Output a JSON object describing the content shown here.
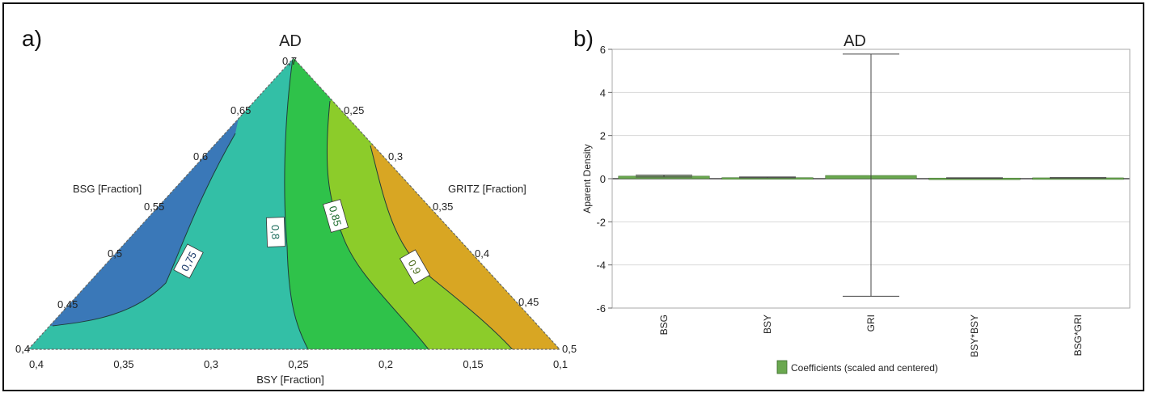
{
  "panels": {
    "left_label": "a)",
    "right_label": "b)"
  },
  "chart_data": [
    {
      "type": "ternary-contour",
      "title": "AD",
      "axis_labels": {
        "left": "BSG [Fraction]",
        "right": "GRITZ [Fraction]",
        "bottom": "BSY [Fraction]"
      },
      "left_ticks": [
        "0,4",
        "0,45",
        "0,5",
        "0,55",
        "0,6",
        "0,65",
        "0,7"
      ],
      "right_ticks": [
        "0,25",
        "0,3",
        "0,35",
        "0,4",
        "0,45",
        "0,5"
      ],
      "bottom_ticks": [
        "0,4",
        "0,35",
        "0,3",
        "0,25",
        "0,2",
        "0,15",
        "0,1"
      ],
      "contour_levels": [
        "0,75",
        "0,8",
        "0,85",
        "0,9"
      ],
      "region_colors": [
        "#3a78b8",
        "#33bfa6",
        "#2fc24a",
        "#8ccc2a",
        "#d8a623",
        "#d8251e"
      ]
    },
    {
      "type": "bar",
      "title": "AD",
      "ylabel": "Aparent Density",
      "ylim": [
        -6,
        6
      ],
      "y_ticks": [
        "6",
        "4",
        "2",
        "0",
        "-2",
        "-4",
        "-6"
      ],
      "categories": [
        "BSG",
        "BSY",
        "GRI",
        "BSY*BSY",
        "BSG*GRI"
      ],
      "values": [
        0.12,
        0.05,
        0.15,
        0.03,
        0.04
      ],
      "error_low": [
        0.08,
        0.04,
        -5.45,
        0.02,
        0.03
      ],
      "error_high": [
        0.17,
        0.08,
        5.78,
        0.04,
        0.05
      ],
      "legend": "Coefficients (scaled and centered)",
      "legend_position": "bottom-center",
      "bar_color": "#6aa84f"
    }
  ]
}
